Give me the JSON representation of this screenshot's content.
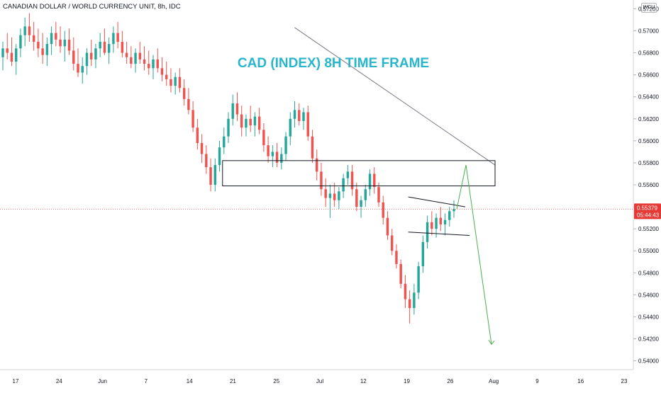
{
  "header": {
    "symbol_line": "CANADIAN DOLLAR / WORLD CURRENCY UNIT, 8h, IDC",
    "badge": "WCU"
  },
  "chart_data": {
    "type": "candlestick",
    "title": "CAD (INDEX) 8H TIME FRAME",
    "title_color": "#29b6cc",
    "y_ticks": [
      "0.57200",
      "0.57000",
      "0.56800",
      "0.56600",
      "0.56400",
      "0.56200",
      "0.56000",
      "0.55800",
      "0.55600",
      "0.55400",
      "0.55200",
      "0.55000",
      "0.54800",
      "0.54600",
      "0.54400",
      "0.54200",
      "0.54000"
    ],
    "x_ticks": [
      "17",
      "24",
      "Jun",
      "7",
      "14",
      "21",
      "25",
      "Jul",
      "12",
      "19",
      "26",
      "Aug",
      "9",
      "16",
      "23"
    ],
    "ylim": [
      0.5392,
      0.5728
    ],
    "current_price": {
      "value": "0.55379",
      "countdown": "05:44:43",
      "color": "#e53935"
    },
    "colors": {
      "up": "#26a69a",
      "down": "#ef5350"
    },
    "candles": [
      [
        0.5676,
        0.569,
        0.5664,
        0.5684
      ],
      [
        0.5684,
        0.5698,
        0.5674,
        0.568
      ],
      [
        0.568,
        0.5694,
        0.5668,
        0.5672
      ],
      [
        0.5672,
        0.5688,
        0.566,
        0.5684
      ],
      [
        0.5684,
        0.5702,
        0.5676,
        0.5696
      ],
      [
        0.5696,
        0.5712,
        0.5686,
        0.5704
      ],
      [
        0.5704,
        0.5716,
        0.569,
        0.5696
      ],
      [
        0.5696,
        0.5708,
        0.5682,
        0.569
      ],
      [
        0.569,
        0.5702,
        0.5676,
        0.5684
      ],
      [
        0.5684,
        0.5698,
        0.567,
        0.5678
      ],
      [
        0.5678,
        0.5694,
        0.5668,
        0.5688
      ],
      [
        0.5688,
        0.5704,
        0.5678,
        0.5698
      ],
      [
        0.5698,
        0.5708,
        0.5686,
        0.5692
      ],
      [
        0.5692,
        0.5704,
        0.568,
        0.5686
      ],
      [
        0.5686,
        0.57,
        0.5672,
        0.5692
      ],
      [
        0.5692,
        0.5702,
        0.5678,
        0.5682
      ],
      [
        0.5682,
        0.5694,
        0.5664,
        0.567
      ],
      [
        0.567,
        0.5684,
        0.5658,
        0.5662
      ],
      [
        0.5662,
        0.5676,
        0.5652,
        0.5668
      ],
      [
        0.5668,
        0.5684,
        0.566,
        0.568
      ],
      [
        0.568,
        0.5692,
        0.5668,
        0.5674
      ],
      [
        0.5674,
        0.5688,
        0.5666,
        0.5684
      ],
      [
        0.5684,
        0.5698,
        0.5676,
        0.569
      ],
      [
        0.569,
        0.5702,
        0.5678,
        0.568
      ],
      [
        0.568,
        0.5694,
        0.567,
        0.5688
      ],
      [
        0.5688,
        0.5704,
        0.568,
        0.5698
      ],
      [
        0.5698,
        0.5708,
        0.5684,
        0.569
      ],
      [
        0.569,
        0.57,
        0.5676,
        0.568
      ],
      [
        0.568,
        0.569,
        0.567,
        0.5676
      ],
      [
        0.5676,
        0.5686,
        0.5666,
        0.567
      ],
      [
        0.567,
        0.5684,
        0.5662,
        0.568
      ],
      [
        0.568,
        0.569,
        0.567,
        0.5674
      ],
      [
        0.5674,
        0.5686,
        0.5664,
        0.567
      ],
      [
        0.567,
        0.5682,
        0.566,
        0.5666
      ],
      [
        0.5666,
        0.5678,
        0.5656,
        0.5674
      ],
      [
        0.5674,
        0.5684,
        0.5662,
        0.5666
      ],
      [
        0.5666,
        0.5676,
        0.5654,
        0.566
      ],
      [
        0.566,
        0.5672,
        0.565,
        0.5656
      ],
      [
        0.5656,
        0.5666,
        0.5644,
        0.565
      ],
      [
        0.565,
        0.5662,
        0.5642,
        0.5658
      ],
      [
        0.5658,
        0.5666,
        0.5644,
        0.5648
      ],
      [
        0.5648,
        0.5656,
        0.5632,
        0.5638
      ],
      [
        0.5638,
        0.5648,
        0.5624,
        0.5628
      ],
      [
        0.5628,
        0.5636,
        0.5608,
        0.5612
      ],
      [
        0.5612,
        0.562,
        0.5592,
        0.5598
      ],
      [
        0.5598,
        0.5606,
        0.558,
        0.5588
      ],
      [
        0.5588,
        0.5596,
        0.557,
        0.5576
      ],
      [
        0.5576,
        0.5584,
        0.5554,
        0.556
      ],
      [
        0.556,
        0.5584,
        0.5554,
        0.5578
      ],
      [
        0.5578,
        0.56,
        0.5572,
        0.5594
      ],
      [
        0.5594,
        0.5612,
        0.5588,
        0.5604
      ],
      [
        0.5604,
        0.5626,
        0.5598,
        0.562
      ],
      [
        0.562,
        0.5642,
        0.5614,
        0.5634
      ],
      [
        0.5634,
        0.5644,
        0.5618,
        0.5624
      ],
      [
        0.5624,
        0.5632,
        0.5604,
        0.5612
      ],
      [
        0.5612,
        0.5624,
        0.5604,
        0.562
      ],
      [
        0.562,
        0.5632,
        0.5608,
        0.5614
      ],
      [
        0.5614,
        0.5626,
        0.5604,
        0.5622
      ],
      [
        0.5622,
        0.563,
        0.5606,
        0.561
      ],
      [
        0.561,
        0.5616,
        0.559,
        0.5596
      ],
      [
        0.5596,
        0.5604,
        0.558,
        0.5586
      ],
      [
        0.5586,
        0.5596,
        0.5576,
        0.559
      ],
      [
        0.559,
        0.5598,
        0.5576,
        0.558
      ],
      [
        0.558,
        0.5594,
        0.5574,
        0.5588
      ],
      [
        0.5588,
        0.5608,
        0.5582,
        0.5604
      ],
      [
        0.5604,
        0.5626,
        0.5596,
        0.562
      ],
      [
        0.562,
        0.5636,
        0.5612,
        0.5628
      ],
      [
        0.5628,
        0.5634,
        0.5614,
        0.5618
      ],
      [
        0.5618,
        0.563,
        0.561,
        0.5626
      ],
      [
        0.5626,
        0.5632,
        0.56,
        0.5604
      ],
      [
        0.5604,
        0.561,
        0.558,
        0.5584
      ],
      [
        0.5584,
        0.5592,
        0.5564,
        0.5572
      ],
      [
        0.5572,
        0.558,
        0.555,
        0.5556
      ],
      [
        0.5556,
        0.5566,
        0.554,
        0.5548
      ],
      [
        0.5548,
        0.556,
        0.553,
        0.5552
      ],
      [
        0.5552,
        0.5562,
        0.554,
        0.5546
      ],
      [
        0.5546,
        0.5558,
        0.5538,
        0.5554
      ],
      [
        0.5554,
        0.557,
        0.5548,
        0.5566
      ],
      [
        0.5566,
        0.5578,
        0.556,
        0.5572
      ],
      [
        0.5572,
        0.5578,
        0.555,
        0.5556
      ],
      [
        0.5556,
        0.5562,
        0.5536,
        0.554
      ],
      [
        0.554,
        0.555,
        0.553,
        0.5546
      ],
      [
        0.5546,
        0.556,
        0.554,
        0.5556
      ],
      [
        0.5556,
        0.5574,
        0.555,
        0.557
      ],
      [
        0.557,
        0.5576,
        0.5552,
        0.5558
      ],
      [
        0.5558,
        0.5562,
        0.554,
        0.5544
      ],
      [
        0.5544,
        0.555,
        0.5524,
        0.553
      ],
      [
        0.553,
        0.5536,
        0.551,
        0.5514
      ],
      [
        0.5514,
        0.552,
        0.5496,
        0.55
      ],
      [
        0.55,
        0.5506,
        0.5484,
        0.5488
      ],
      [
        0.5488,
        0.5492,
        0.5466,
        0.547
      ],
      [
        0.547,
        0.5478,
        0.5448,
        0.5456
      ],
      [
        0.5456,
        0.5464,
        0.5434,
        0.5448
      ],
      [
        0.5448,
        0.547,
        0.5442,
        0.5462
      ],
      [
        0.5462,
        0.549,
        0.5456,
        0.5486
      ],
      [
        0.5486,
        0.5514,
        0.548,
        0.5508
      ],
      [
        0.5508,
        0.5532,
        0.5502,
        0.5526
      ],
      [
        0.5526,
        0.5536,
        0.5514,
        0.552
      ],
      [
        0.552,
        0.5534,
        0.5512,
        0.553
      ],
      [
        0.553,
        0.554,
        0.5518,
        0.5524
      ],
      [
        0.5524,
        0.5534,
        0.5514,
        0.5528
      ],
      [
        0.5528,
        0.554,
        0.5522,
        0.5536
      ],
      [
        0.5536,
        0.5546,
        0.553,
        0.5538
      ]
    ],
    "drawings": {
      "trendline": {
        "start": [
          0.0,
          0.5703
        ],
        "end": [
          1.0,
          0.5578
        ],
        "color": "#787b86"
      },
      "zone": {
        "top": 0.5582,
        "bottom": 0.5559,
        "color": "#131722"
      },
      "flag_upper": {
        "from": 0.5549,
        "to": 0.554
      },
      "flag_lower": {
        "from": 0.5517,
        "to": 0.5514
      },
      "projection": {
        "points": [
          0.5538,
          0.5578,
          0.5415
        ],
        "color": "#4caf50"
      }
    }
  }
}
